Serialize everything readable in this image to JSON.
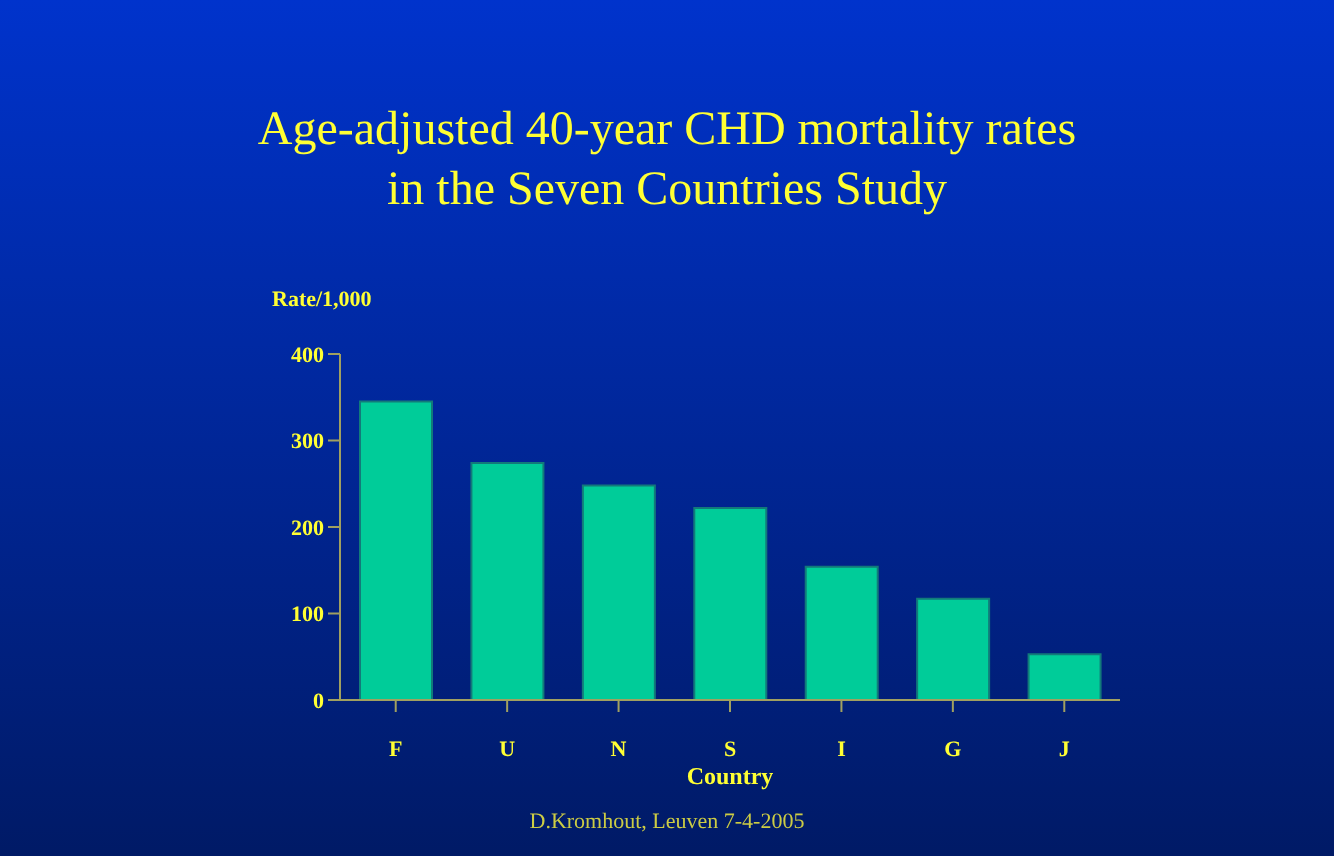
{
  "chart_data": {
    "type": "bar",
    "title": "Age-adjusted 40-year CHD mortality rates in the Seven Countries Study",
    "xlabel": "Country",
    "ylabel": "Rate/1,000",
    "categories": [
      "F",
      "U",
      "N",
      "S",
      "I",
      "G",
      "J"
    ],
    "values": [
      345,
      274,
      248,
      222,
      154,
      117,
      53
    ],
    "color": "#00cc99",
    "ylim": [
      0,
      400
    ],
    "yticks": [
      0,
      100,
      200,
      300,
      400
    ],
    "grid": false,
    "legend": false,
    "annotations": [
      "D.Kromhout, Leuven 7-4-2005"
    ]
  }
}
